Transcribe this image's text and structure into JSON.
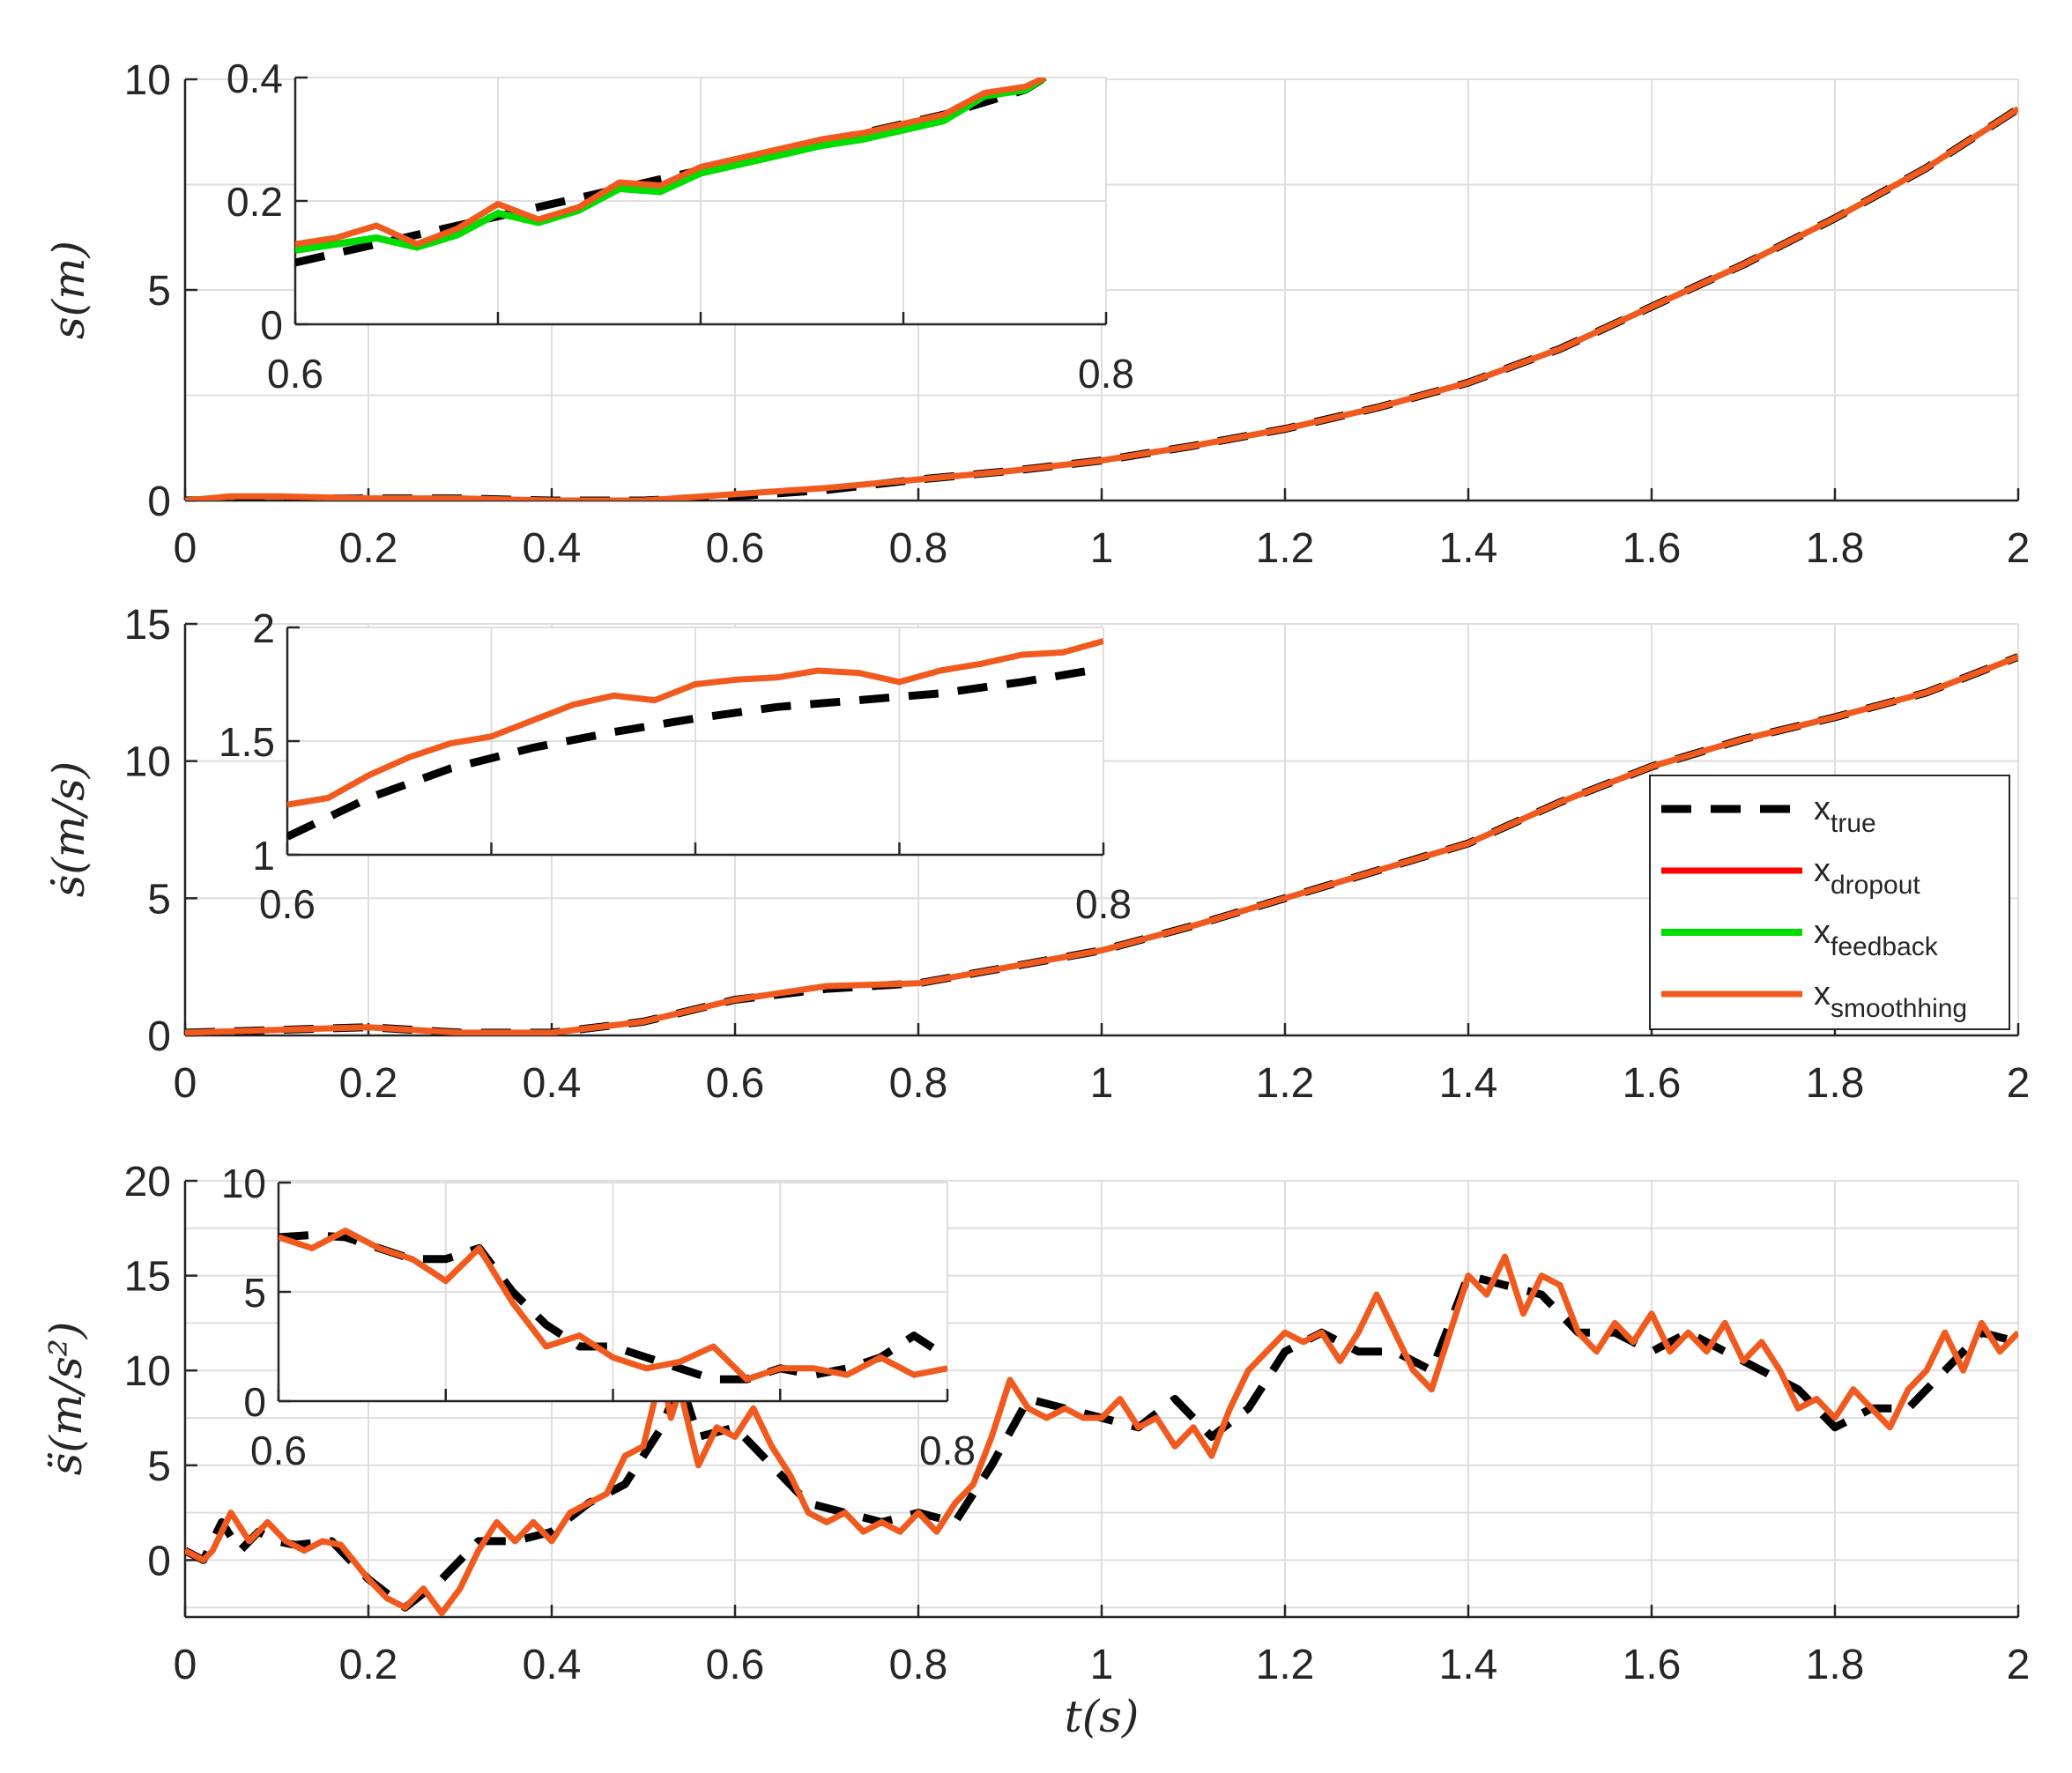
{
  "colors": {
    "true": "#000000",
    "dropout": "#ff0000",
    "feedback": "#00dd00",
    "smoothing": "#f05a1e",
    "grid": "#dedede",
    "axis": "#262626"
  },
  "figure": {
    "xlabel": "t(s)"
  },
  "legend": [
    {
      "key": "true",
      "base": "x",
      "sub": "true"
    },
    {
      "key": "dropout",
      "base": "x",
      "sub": "dropout"
    },
    {
      "key": "feedback",
      "base": "x",
      "sub": "feedback"
    },
    {
      "key": "smoothing",
      "base": "x",
      "sub": "smoothhing"
    }
  ],
  "chart_data": [
    {
      "type": "line",
      "title": "",
      "ylabel": "s(m)",
      "xlabel": "",
      "xlim": [
        0,
        2
      ],
      "ylim": [
        0,
        10
      ],
      "xticks": [
        0,
        0.2,
        0.4,
        0.6,
        0.8,
        1,
        1.2,
        1.4,
        1.6,
        1.8,
        2
      ],
      "xtick_labels": [
        "0",
        "0.2",
        "0.4",
        "0.6",
        "0.8",
        "1",
        "1.2",
        "1.4",
        "1.6",
        "1.8",
        "2"
      ],
      "yticks": [
        0,
        5,
        10
      ],
      "ytick_labels": [
        "0",
        "5",
        "10"
      ],
      "series": [
        {
          "name": "x_true",
          "x": [
            0,
            0.1,
            0.2,
            0.3,
            0.4,
            0.5,
            0.6,
            0.7,
            0.8,
            0.9,
            1.0,
            1.1,
            1.2,
            1.3,
            1.4,
            1.5,
            1.6,
            1.7,
            1.8,
            1.9,
            2.0
          ],
          "y": [
            0,
            0.05,
            0.05,
            0.05,
            0.0,
            0.0,
            0.1,
            0.25,
            0.5,
            0.7,
            0.95,
            1.3,
            1.7,
            2.2,
            2.8,
            3.6,
            4.6,
            5.6,
            6.7,
            7.9,
            9.3
          ]
        },
        {
          "name": "x_smoothhing",
          "x": [
            0,
            0.05,
            0.1,
            0.2,
            0.3,
            0.4,
            0.5,
            0.6,
            0.7,
            0.8,
            0.9,
            1.0,
            1.1,
            1.2,
            1.3,
            1.4,
            1.5,
            1.6,
            1.7,
            1.8,
            1.9,
            2.0
          ],
          "y": [
            0,
            0.1,
            0.1,
            0.05,
            0.05,
            0.0,
            0.0,
            0.15,
            0.3,
            0.5,
            0.7,
            0.95,
            1.3,
            1.7,
            2.2,
            2.8,
            3.6,
            4.6,
            5.6,
            6.7,
            7.9,
            9.3
          ]
        }
      ],
      "inset": {
        "xlim": [
          0.6,
          0.8
        ],
        "ylim": [
          0,
          0.4
        ],
        "xticks": [
          0.6,
          0.8
        ],
        "xtick_labels": [
          "0.6",
          "0.8"
        ],
        "yticks": [
          0,
          0.2,
          0.4
        ],
        "ytick_labels": [
          "0",
          "0.2",
          "0.4"
        ],
        "series": [
          {
            "name": "x_true",
            "x": [
              0.6,
              0.62,
              0.64,
              0.66,
              0.68,
              0.7,
              0.72,
              0.74,
              0.76,
              0.78,
              0.785
            ],
            "y": [
              0.1,
              0.13,
              0.16,
              0.19,
              0.22,
              0.25,
              0.28,
              0.31,
              0.34,
              0.38,
              0.4
            ]
          },
          {
            "name": "x_feedback",
            "x": [
              0.6,
              0.61,
              0.62,
              0.63,
              0.64,
              0.65,
              0.66,
              0.67,
              0.68,
              0.69,
              0.7,
              0.71,
              0.72,
              0.73,
              0.74,
              0.75,
              0.76,
              0.77,
              0.78,
              0.785
            ],
            "y": [
              0.12,
              0.13,
              0.14,
              0.125,
              0.145,
              0.18,
              0.165,
              0.185,
              0.22,
              0.215,
              0.245,
              0.26,
              0.275,
              0.29,
              0.3,
              0.315,
              0.33,
              0.37,
              0.38,
              0.4
            ]
          },
          {
            "name": "x_smoothhing",
            "x": [
              0.6,
              0.61,
              0.62,
              0.63,
              0.64,
              0.65,
              0.66,
              0.67,
              0.68,
              0.69,
              0.7,
              0.71,
              0.72,
              0.73,
              0.74,
              0.75,
              0.76,
              0.77,
              0.78,
              0.785
            ],
            "y": [
              0.13,
              0.14,
              0.16,
              0.13,
              0.155,
              0.195,
              0.17,
              0.19,
              0.23,
              0.225,
              0.255,
              0.27,
              0.285,
              0.3,
              0.31,
              0.325,
              0.34,
              0.375,
              0.385,
              0.4
            ]
          }
        ]
      }
    },
    {
      "type": "line",
      "title": "",
      "ylabel": "ṡ(m/s)",
      "xlabel": "",
      "xlim": [
        0,
        2
      ],
      "ylim": [
        0,
        15
      ],
      "xticks": [
        0,
        0.2,
        0.4,
        0.6,
        0.8,
        1,
        1.2,
        1.4,
        1.6,
        1.8,
        2
      ],
      "xtick_labels": [
        "0",
        "0.2",
        "0.4",
        "0.6",
        "0.8",
        "1",
        "1.2",
        "1.4",
        "1.6",
        "1.8",
        "2"
      ],
      "yticks": [
        0,
        5,
        10,
        15
      ],
      "ytick_labels": [
        "0",
        "5",
        "10",
        "15"
      ],
      "legend_position": "right",
      "series": [
        {
          "name": "x_true",
          "x": [
            0,
            0.1,
            0.2,
            0.3,
            0.4,
            0.5,
            0.6,
            0.7,
            0.8,
            0.9,
            1.0,
            1.1,
            1.2,
            1.3,
            1.4,
            1.5,
            1.6,
            1.7,
            1.8,
            1.9,
            2.0
          ],
          "y": [
            0.1,
            0.2,
            0.3,
            0.1,
            0.1,
            0.5,
            1.3,
            1.7,
            1.9,
            2.5,
            3.1,
            4.0,
            5.0,
            6.0,
            7.0,
            8.5,
            9.8,
            10.8,
            11.6,
            12.5,
            13.8
          ]
        },
        {
          "name": "x_smoothhing",
          "x": [
            0,
            0.1,
            0.2,
            0.3,
            0.4,
            0.5,
            0.6,
            0.7,
            0.8,
            0.9,
            1.0,
            1.1,
            1.2,
            1.3,
            1.4,
            1.5,
            1.6,
            1.7,
            1.8,
            1.9,
            2.0
          ],
          "y": [
            0.1,
            0.2,
            0.3,
            0.1,
            0.1,
            0.5,
            1.3,
            1.8,
            1.9,
            2.5,
            3.1,
            4.0,
            5.0,
            6.0,
            7.0,
            8.5,
            9.8,
            10.8,
            11.6,
            12.5,
            13.8
          ]
        }
      ],
      "inset": {
        "xlim": [
          0.6,
          0.8
        ],
        "ylim": [
          1,
          2
        ],
        "xticks": [
          0.6,
          0.8
        ],
        "xtick_labels": [
          "0.6",
          "0.8"
        ],
        "yticks": [
          1,
          1.5,
          2
        ],
        "ytick_labels": [
          "1",
          "1.5",
          "2"
        ],
        "series": [
          {
            "name": "x_true",
            "x": [
              0.6,
              0.62,
              0.64,
              0.66,
              0.68,
              0.7,
              0.72,
              0.74,
              0.76,
              0.78,
              0.8
            ],
            "y": [
              1.08,
              1.25,
              1.38,
              1.47,
              1.54,
              1.6,
              1.65,
              1.68,
              1.71,
              1.76,
              1.82
            ]
          },
          {
            "name": "x_smoothhing",
            "x": [
              0.6,
              0.61,
              0.62,
              0.63,
              0.64,
              0.65,
              0.66,
              0.67,
              0.68,
              0.69,
              0.7,
              0.71,
              0.72,
              0.73,
              0.74,
              0.75,
              0.76,
              0.77,
              0.78,
              0.79,
              0.8
            ],
            "y": [
              1.22,
              1.25,
              1.35,
              1.43,
              1.49,
              1.52,
              1.59,
              1.66,
              1.7,
              1.68,
              1.75,
              1.77,
              1.78,
              1.81,
              1.8,
              1.76,
              1.81,
              1.84,
              1.88,
              1.89,
              1.94
            ]
          }
        ]
      }
    },
    {
      "type": "line",
      "title": "",
      "ylabel": "s̈(m/s²)",
      "xlabel": "t(s)",
      "xlim": [
        0,
        2
      ],
      "ylim": [
        -3,
        20
      ],
      "xticks": [
        0,
        0.2,
        0.4,
        0.6,
        0.8,
        1,
        1.2,
        1.4,
        1.6,
        1.8,
        2
      ],
      "xtick_labels": [
        "0",
        "0.2",
        "0.4",
        "0.6",
        "0.8",
        "1",
        "1.2",
        "1.4",
        "1.6",
        "1.8",
        "2"
      ],
      "yticks": [
        0,
        5,
        10,
        15,
        20
      ],
      "ytick_labels": [
        "0",
        "5",
        "10",
        "15",
        "20"
      ],
      "series": [
        {
          "name": "x_true",
          "x": [
            0,
            0.02,
            0.04,
            0.06,
            0.08,
            0.1,
            0.12,
            0.16,
            0.2,
            0.24,
            0.28,
            0.32,
            0.36,
            0.4,
            0.44,
            0.48,
            0.52,
            0.54,
            0.56,
            0.6,
            0.64,
            0.68,
            0.72,
            0.76,
            0.8,
            0.84,
            0.88,
            0.92,
            0.96,
            1.0,
            1.04,
            1.08,
            1.12,
            1.16,
            1.2,
            1.24,
            1.28,
            1.32,
            1.36,
            1.4,
            1.44,
            1.48,
            1.52,
            1.56,
            1.6,
            1.64,
            1.68,
            1.72,
            1.76,
            1.8,
            1.84,
            1.88,
            1.92,
            1.96,
            2.0
          ],
          "y": [
            0.5,
            0,
            2.0,
            0.5,
            1.5,
            1.0,
            0.8,
            1.0,
            -1.0,
            -2.5,
            -1.0,
            1.0,
            1.0,
            1.5,
            3.0,
            4.0,
            7.0,
            9.5,
            6.5,
            7.0,
            5.0,
            3.0,
            2.5,
            2.0,
            2.5,
            2.0,
            5.0,
            8.5,
            8.0,
            7.5,
            7.0,
            8.5,
            6.5,
            8.0,
            11.0,
            12.0,
            11.0,
            11.0,
            10.0,
            15.0,
            14.5,
            14.0,
            12.0,
            12.0,
            11.0,
            12.0,
            11.0,
            10.0,
            9.0,
            7.0,
            8.0,
            8.0,
            10.0,
            12.0,
            11.5
          ]
        },
        {
          "name": "x_smoothhing",
          "x": [
            0,
            0.02,
            0.03,
            0.05,
            0.07,
            0.09,
            0.11,
            0.13,
            0.15,
            0.17,
            0.2,
            0.22,
            0.24,
            0.26,
            0.28,
            0.3,
            0.32,
            0.34,
            0.36,
            0.38,
            0.4,
            0.42,
            0.44,
            0.46,
            0.48,
            0.5,
            0.52,
            0.53,
            0.54,
            0.56,
            0.58,
            0.6,
            0.62,
            0.64,
            0.66,
            0.68,
            0.7,
            0.72,
            0.74,
            0.76,
            0.78,
            0.8,
            0.82,
            0.84,
            0.86,
            0.88,
            0.9,
            0.92,
            0.94,
            0.96,
            0.98,
            1.0,
            1.02,
            1.04,
            1.06,
            1.08,
            1.1,
            1.12,
            1.14,
            1.16,
            1.18,
            1.2,
            1.22,
            1.24,
            1.26,
            1.28,
            1.3,
            1.32,
            1.34,
            1.36,
            1.38,
            1.4,
            1.42,
            1.44,
            1.46,
            1.48,
            1.5,
            1.52,
            1.54,
            1.56,
            1.58,
            1.6,
            1.62,
            1.64,
            1.66,
            1.68,
            1.7,
            1.72,
            1.74,
            1.76,
            1.78,
            1.8,
            1.82,
            1.84,
            1.86,
            1.88,
            1.9,
            1.92,
            1.94,
            1.96,
            1.98,
            2.0
          ],
          "y": [
            0.5,
            0,
            0.5,
            2.5,
            1.0,
            2.0,
            1.0,
            0.5,
            1.0,
            0.8,
            -1.0,
            -2.0,
            -2.5,
            -1.5,
            -2.8,
            -1.5,
            0.5,
            2.0,
            1.0,
            2.0,
            1.0,
            2.5,
            3.0,
            3.5,
            5.5,
            6.0,
            10.0,
            7.5,
            9.0,
            5.0,
            7.0,
            6.5,
            8.0,
            6.0,
            4.5,
            2.5,
            2.0,
            2.5,
            1.5,
            2.0,
            1.5,
            2.5,
            1.5,
            3.0,
            4.0,
            6.5,
            9.5,
            8.0,
            7.5,
            8.0,
            7.5,
            7.5,
            8.5,
            7.0,
            7.5,
            6.0,
            7.0,
            5.5,
            8.0,
            10.0,
            11.0,
            12.0,
            11.5,
            12.0,
            10.5,
            12.0,
            14.0,
            12.0,
            10.0,
            9.0,
            12.0,
            15.0,
            14.0,
            16.0,
            13.0,
            15.0,
            14.5,
            12.0,
            11.0,
            12.5,
            11.5,
            13.0,
            11.0,
            12.0,
            11.0,
            12.5,
            10.5,
            11.5,
            10.0,
            8.0,
            8.5,
            7.5,
            9.0,
            8.0,
            7.0,
            9.0,
            10.0,
            12.0,
            10.0,
            12.5,
            11.0,
            12.0
          ]
        }
      ],
      "inset": {
        "xlim": [
          0.6,
          0.8
        ],
        "ylim": [
          0,
          10
        ],
        "xticks": [
          0.6,
          0.8
        ],
        "xtick_labels": [
          "0.6",
          "0.8"
        ],
        "yticks": [
          0,
          5,
          10
        ],
        "ytick_labels": [
          "0",
          "5",
          "10"
        ],
        "series": [
          {
            "name": "x_true",
            "x": [
              0.6,
              0.61,
              0.62,
              0.63,
              0.64,
              0.65,
              0.66,
              0.67,
              0.68,
              0.69,
              0.7,
              0.71,
              0.72,
              0.73,
              0.74,
              0.75,
              0.76,
              0.77,
              0.78,
              0.79,
              0.8
            ],
            "y": [
              7.5,
              7.6,
              7.5,
              7.0,
              6.5,
              6.5,
              7.0,
              5.0,
              3.5,
              2.5,
              2.5,
              2.0,
              1.5,
              1.0,
              1.0,
              1.5,
              1.2,
              1.5,
              2.0,
              3.0,
              2.0
            ]
          },
          {
            "name": "x_smoothhing",
            "x": [
              0.6,
              0.61,
              0.62,
              0.63,
              0.64,
              0.65,
              0.66,
              0.67,
              0.68,
              0.69,
              0.7,
              0.71,
              0.72,
              0.73,
              0.74,
              0.75,
              0.76,
              0.77,
              0.78,
              0.79,
              0.8
            ],
            "y": [
              7.5,
              7.0,
              7.8,
              7.0,
              6.5,
              5.5,
              7.0,
              4.5,
              2.5,
              3.0,
              2.0,
              1.5,
              1.8,
              2.5,
              1.0,
              1.5,
              1.5,
              1.2,
              2.0,
              1.2,
              1.5
            ]
          }
        ]
      }
    }
  ]
}
